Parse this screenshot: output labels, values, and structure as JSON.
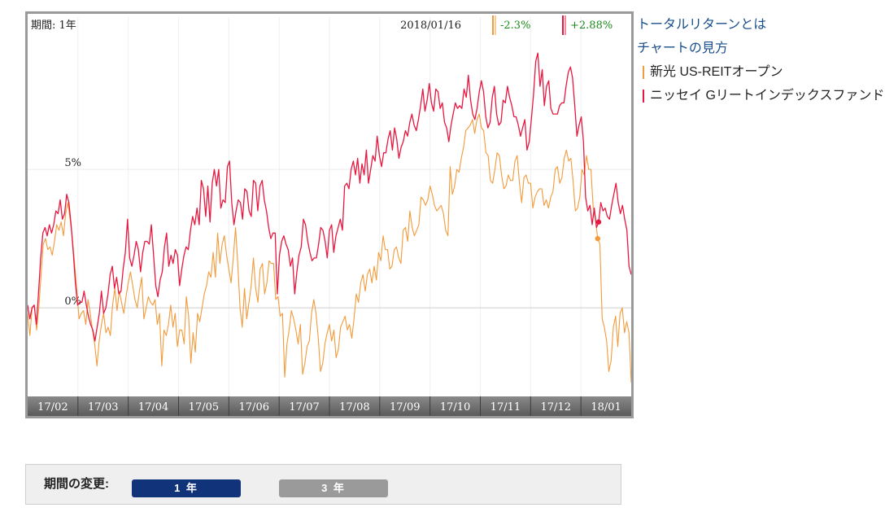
{
  "chart_data": {
    "type": "line",
    "period_label": "期間: 1年",
    "hover_date": "2018/01/16",
    "hover_values": [
      "-2.3%",
      "+2.88%"
    ],
    "x_tick_labels": [
      "17/02",
      "17/03",
      "17/04",
      "17/05",
      "17/06",
      "17/07",
      "17/08",
      "17/09",
      "17/10",
      "17/11",
      "17/12",
      "18/01"
    ],
    "y_ticks": [
      {
        "value": 0,
        "label": "0%"
      },
      {
        "value": 5,
        "label": "5%"
      }
    ],
    "ylim": [
      -3.2,
      10.5
    ],
    "grid": true,
    "series": [
      {
        "name": "新光 US-REITオープン",
        "color": "#f39a3a",
        "values": [
          -0.2,
          -1.0,
          0.0,
          0.1,
          -0.8,
          0.0,
          1.2,
          2.3,
          2.5,
          2.1,
          2.2,
          1.9,
          2.4,
          3.0,
          2.8,
          3.1,
          2.6,
          3.4,
          3.8,
          3.2,
          2.5,
          1.6,
          0.6,
          -0.4,
          -0.2,
          -0.1,
          -0.6,
          0.3,
          -0.2,
          -0.8,
          -1.3,
          -2.1,
          -1.2,
          -0.6,
          -0.2,
          -0.9,
          -0.7,
          -1.0,
          0.1,
          0.7,
          -0.1,
          0.6,
          0.2,
          -0.2,
          0.4,
          0.9,
          1.3,
          0.8,
          0.3,
          0.0,
          0.6,
          1.1,
          -0.4,
          0.0,
          0.4,
          0.2,
          0.1,
          0.3,
          -0.6,
          -0.2,
          -2.1,
          -0.8,
          -1.0,
          -0.6,
          0.1,
          -0.7,
          -0.2,
          -1.4,
          -0.8,
          -0.8,
          -1.3,
          0.4,
          -0.3,
          -2.0,
          -0.9,
          -1.6,
          -0.2,
          -0.5,
          0.0,
          0.5,
          0.8,
          1.3,
          1.1,
          2.0,
          1.1,
          2.7,
          1.6,
          2.3,
          2.6,
          1.9,
          1.4,
          0.9,
          1.8,
          2.9,
          1.6,
          0.0,
          -0.7,
          0.7,
          -0.4,
          0.2,
          0.8,
          1.8,
          0.7,
          0.2,
          1.4,
          1.6,
          0.5,
          0.9,
          1.7,
          1.6,
          1.6,
          0.3,
          0.4,
          -0.3,
          -0.2,
          -2.5,
          -1.3,
          -0.8,
          -0.1,
          -0.4,
          -0.8,
          -1.3,
          -0.6,
          -2.4,
          -2.0,
          -1.4,
          -1.2,
          -0.2,
          0.3,
          -0.2,
          -1.1,
          -2.3,
          -2.0,
          -1.3,
          -0.9,
          -0.6,
          -1.2,
          -0.8,
          -1.8,
          -1.5,
          -0.7,
          -0.5,
          -0.3,
          -0.8,
          -0.6,
          -1.1,
          -0.4,
          0.5,
          0.2,
          0.9,
          1.2,
          0.6,
          1.2,
          1.4,
          0.9,
          1.5,
          1.0,
          2.0,
          1.7,
          2.6,
          2.1,
          2.1,
          1.4,
          1.5,
          2.1,
          2.2,
          1.8,
          1.6,
          2.8,
          2.9,
          2.4,
          3.5,
          2.9,
          2.6,
          2.8,
          3.0,
          4.0,
          3.9,
          3.7,
          3.9,
          4.4,
          4.1,
          3.7,
          3.5,
          3.6,
          3.7,
          3.4,
          2.8,
          2.6,
          5.1,
          4.1,
          4.4,
          5.0,
          4.9,
          5.4,
          5.8,
          6.4,
          6.5,
          6.6,
          6.8,
          6.3,
          6.8,
          7.0,
          6.5,
          6.4,
          5.6,
          5.5,
          4.6,
          4.5,
          5.0,
          5.6,
          5.5,
          4.8,
          4.3,
          4.4,
          4.8,
          4.6,
          4.6,
          5.3,
          5.5,
          4.5,
          3.8,
          4.7,
          4.8,
          4.5,
          4.5,
          3.6,
          4.0,
          4.2,
          4.3,
          4.3,
          3.7,
          3.9,
          3.6,
          4.0,
          4.2,
          5.0,
          5.1,
          4.5,
          4.7,
          5.4,
          5.7,
          5.3,
          5.4,
          4.6,
          3.5,
          3.6,
          4.0,
          5.0,
          4.8,
          5.5,
          5.0,
          5.0,
          3.6,
          3.2,
          2.5,
          2.3,
          -0.4,
          -0.7,
          -1.2,
          -2.3,
          -1.9,
          -0.7,
          -0.3,
          -1.4,
          -0.2,
          0.0,
          -0.9,
          -0.5,
          -0.9,
          -2.7
        ]
      },
      {
        "name": "ニッセイ Gリートインデックスファンド",
        "color": "#e8173f",
        "values": [
          0.1,
          -0.4,
          0.0,
          0.1,
          -0.6,
          0.5,
          1.8,
          2.7,
          2.9,
          2.6,
          3.0,
          2.7,
          3.0,
          3.5,
          3.4,
          3.9,
          3.2,
          3.4,
          4.1,
          3.8,
          3.0,
          2.0,
          0.9,
          0.1,
          0.2,
          0.2,
          0.6,
          0.1,
          -0.3,
          -0.6,
          -0.8,
          -1.2,
          -0.7,
          -0.2,
          0.6,
          -0.2,
          0.0,
          0.5,
          1.2,
          1.5,
          0.7,
          1.1,
          0.5,
          0.6,
          1.4,
          2.0,
          3.2,
          1.8,
          1.5,
          1.9,
          2.4,
          2.1,
          1.3,
          2.0,
          2.4,
          2.4,
          2.3,
          3.0,
          1.9,
          0.8,
          0.4,
          1.0,
          1.3,
          2.2,
          2.7,
          1.5,
          1.9,
          1.6,
          2.1,
          1.9,
          0.8,
          1.4,
          1.9,
          2.2,
          2.1,
          2.8,
          3.3,
          3.0,
          3.6,
          3.0,
          4.6,
          4.3,
          3.3,
          4.4,
          3.1,
          4.5,
          5.0,
          4.4,
          5.0,
          3.6,
          3.9,
          3.8,
          5.1,
          5.3,
          3.8,
          3.0,
          3.5,
          3.9,
          3.8,
          3.2,
          4.3,
          4.2,
          3.5,
          3.3,
          4.6,
          4.5,
          3.5,
          4.4,
          4.6,
          3.9,
          3.5,
          2.9,
          2.5,
          2.7,
          2.7,
          0.5,
          1.9,
          2.4,
          2.6,
          2.3,
          2.1,
          1.5,
          1.8,
          0.5,
          1.3,
          1.9,
          2.2,
          3.2,
          3.0,
          2.4,
          2.0,
          1.7,
          1.8,
          1.8,
          2.3,
          2.9,
          2.8,
          2.4,
          1.8,
          2.8,
          3.0,
          2.0,
          2.6,
          2.9,
          3.2,
          2.8,
          4.4,
          4.5,
          4.3,
          5.0,
          5.3,
          4.8,
          5.4,
          4.5,
          5.2,
          4.8,
          5.7,
          4.5,
          5.0,
          5.5,
          5.3,
          6.2,
          5.5,
          5.1,
          5.6,
          5.6,
          6.1,
          6.4,
          5.7,
          6.5,
          6.1,
          5.4,
          5.8,
          6.0,
          6.4,
          6.2,
          6.7,
          7.0,
          6.6,
          6.4,
          6.8,
          7.3,
          7.9,
          7.1,
          7.5,
          8.1,
          7.4,
          7.1,
          7.9,
          7.8,
          7.2,
          7.4,
          6.7,
          6.5,
          6.0,
          6.6,
          7.0,
          7.4,
          7.2,
          7.3,
          7.2,
          7.9,
          7.6,
          8.4,
          7.5,
          7.0,
          6.8,
          7.2,
          7.8,
          8.2,
          7.8,
          6.9,
          6.5,
          6.7,
          7.6,
          8.0,
          7.0,
          6.6,
          6.7,
          7.5,
          7.4,
          8.0,
          7.6,
          7.3,
          6.9,
          6.9,
          6.6,
          6.2,
          6.5,
          6.8,
          5.7,
          6.0,
          6.8,
          7.7,
          8.9,
          9.2,
          8.0,
          8.6,
          7.3,
          8.0,
          8.2,
          7.2,
          7.0,
          7.0,
          7.0,
          7.3,
          7.4,
          7.4,
          8.0,
          8.5,
          8.7,
          8.3,
          7.3,
          6.2,
          6.6,
          6.9,
          6.0,
          4.0,
          3.5,
          3.7,
          3.0,
          3.6,
          2.9,
          3.1,
          3.8,
          3.5,
          3.6,
          3.3,
          3.2,
          3.7,
          4.1,
          4.5,
          3.8,
          3.4,
          3.7,
          3.2,
          2.8,
          1.5,
          1.2
        ]
      }
    ]
  },
  "side": {
    "link1": "トータルリターンとは",
    "link2": "チャートの見方"
  },
  "period": {
    "label": "期間の変更:",
    "btn_1y": "1 年",
    "btn_3y": "3 年"
  }
}
